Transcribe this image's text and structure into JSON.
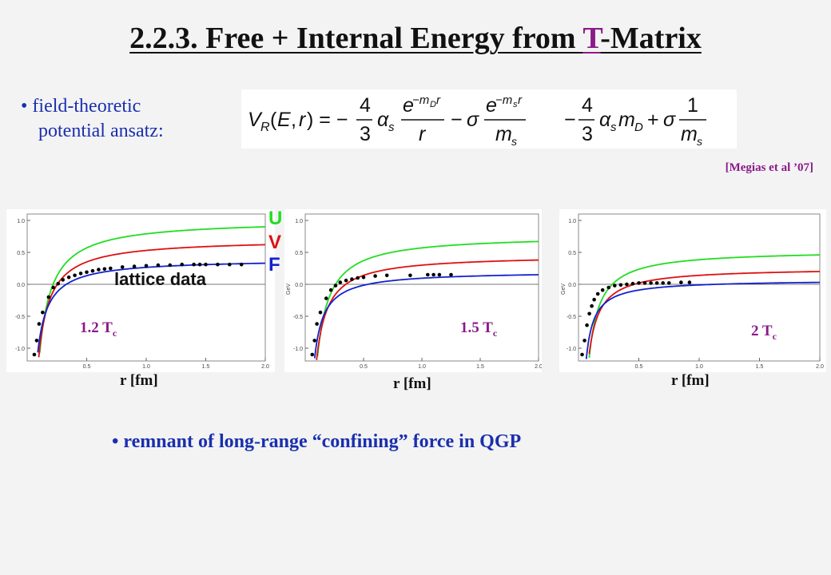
{
  "title": {
    "prefix": "2.2.3. Free + Internal Energy from ",
    "highlight": "T",
    "suffix": "-Matrix"
  },
  "bullet1": {
    "line1": "• field-theoretic",
    "line2": "potential ansatz:"
  },
  "reference": "[Megias et al ’07]",
  "legend_letters": {
    "u": "U",
    "v": "V",
    "f": "F"
  },
  "lattice_label": "lattice data",
  "bullet2": "• remnant of long-range “confining” force in QGP",
  "colors": {
    "U": "#22dd22",
    "V": "#dd1111",
    "F": "#1122cc",
    "data": "#000000",
    "accent": "#8a1a8a",
    "text_blue": "#1a2fae"
  },
  "chart_data": [
    {
      "type": "line",
      "temperature": "1.2 T",
      "temperature_sub": "c",
      "xlabel": "r [fm]",
      "ylabel": "",
      "xlim": [
        0,
        2.0
      ],
      "ylim": [
        -1.2,
        1.1
      ],
      "xticks": [
        "0.5",
        "1.0",
        "1.5",
        "2.0"
      ],
      "yticks": [
        "1.0",
        "0.5",
        "0.0",
        "-0.5",
        "-1.0"
      ],
      "params": {
        "U": [
          0.9,
          0.22
        ],
        "V": [
          0.62,
          0.18
        ],
        "F": [
          0.33,
          0.13
        ]
      },
      "lattice": [
        [
          0.06,
          -1.1
        ],
        [
          0.08,
          -0.88
        ],
        [
          0.1,
          -0.62
        ],
        [
          0.13,
          -0.44
        ],
        [
          0.18,
          -0.2
        ],
        [
          0.22,
          -0.05
        ],
        [
          0.26,
          0.01
        ],
        [
          0.3,
          0.07
        ],
        [
          0.35,
          0.11
        ],
        [
          0.4,
          0.14
        ],
        [
          0.45,
          0.17
        ],
        [
          0.5,
          0.19
        ],
        [
          0.55,
          0.21
        ],
        [
          0.6,
          0.23
        ],
        [
          0.65,
          0.24
        ],
        [
          0.7,
          0.25
        ],
        [
          0.8,
          0.27
        ],
        [
          0.9,
          0.28
        ],
        [
          1.0,
          0.29
        ],
        [
          1.1,
          0.3
        ],
        [
          1.2,
          0.3
        ],
        [
          1.3,
          0.31
        ],
        [
          1.4,
          0.31
        ],
        [
          1.45,
          0.31
        ],
        [
          1.5,
          0.31
        ],
        [
          1.6,
          0.31
        ],
        [
          1.7,
          0.31
        ],
        [
          1.8,
          0.31
        ]
      ]
    },
    {
      "type": "line",
      "temperature": "1.5 T",
      "temperature_sub": "c",
      "xlabel": "r [fm]",
      "ylabel": "GeV",
      "xlim": [
        0,
        2.0
      ],
      "ylim": [
        -1.2,
        1.1
      ],
      "xticks": [
        "0.5",
        "1.0",
        "1.5",
        "2.0"
      ],
      "yticks": [
        "1.0",
        "0.5",
        "0.0",
        "-0.5",
        "-1.0"
      ],
      "params": {
        "U": [
          0.67,
          0.2
        ],
        "V": [
          0.38,
          0.16
        ],
        "F": [
          0.15,
          0.11
        ]
      },
      "lattice": [
        [
          0.06,
          -1.1
        ],
        [
          0.08,
          -0.88
        ],
        [
          0.1,
          -0.62
        ],
        [
          0.13,
          -0.44
        ],
        [
          0.18,
          -0.22
        ],
        [
          0.22,
          -0.09
        ],
        [
          0.26,
          -0.02
        ],
        [
          0.3,
          0.03
        ],
        [
          0.35,
          0.06
        ],
        [
          0.4,
          0.08
        ],
        [
          0.45,
          0.1
        ],
        [
          0.5,
          0.11
        ],
        [
          0.6,
          0.13
        ],
        [
          0.7,
          0.14
        ],
        [
          0.9,
          0.14
        ],
        [
          1.05,
          0.15
        ],
        [
          1.1,
          0.15
        ],
        [
          1.15,
          0.15
        ],
        [
          1.25,
          0.15
        ]
      ]
    },
    {
      "type": "line",
      "temperature": "2 T",
      "temperature_sub": "c",
      "xlabel": "r [fm]",
      "ylabel": "GeV",
      "xlim": [
        0,
        2.0
      ],
      "ylim": [
        -1.2,
        1.1
      ],
      "xticks": [
        "0.5",
        "1.0",
        "1.5",
        "2.0"
      ],
      "yticks": [
        "1.0",
        "0.5",
        "0.0",
        "-0.5",
        "-1.0"
      ],
      "params": {
        "U": [
          0.46,
          0.15
        ],
        "V": [
          0.2,
          0.12
        ],
        "F": [
          0.03,
          0.08
        ]
      },
      "lattice": [
        [
          0.03,
          -1.1
        ],
        [
          0.05,
          -0.88
        ],
        [
          0.07,
          -0.64
        ],
        [
          0.09,
          -0.46
        ],
        [
          0.11,
          -0.34
        ],
        [
          0.13,
          -0.24
        ],
        [
          0.16,
          -0.15
        ],
        [
          0.2,
          -0.09
        ],
        [
          0.25,
          -0.05
        ],
        [
          0.3,
          -0.02
        ],
        [
          0.35,
          -0.01
        ],
        [
          0.4,
          0.0
        ],
        [
          0.45,
          0.01
        ],
        [
          0.5,
          0.02
        ],
        [
          0.55,
          0.02
        ],
        [
          0.6,
          0.02
        ],
        [
          0.65,
          0.02
        ],
        [
          0.7,
          0.02
        ],
        [
          0.75,
          0.02
        ],
        [
          0.85,
          0.03
        ],
        [
          0.92,
          0.03
        ]
      ]
    }
  ]
}
